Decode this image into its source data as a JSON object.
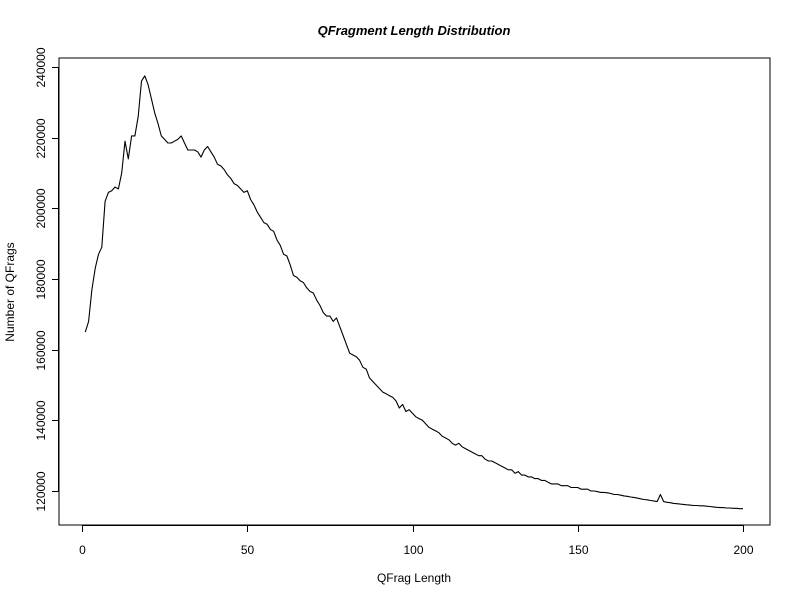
{
  "chart_data": {
    "type": "line",
    "title": "QFragment Length Distribution",
    "xlabel": "QFrag Length",
    "ylabel": "Number of QFrags",
    "xlim": [
      0,
      200
    ],
    "ylim": [
      110000,
      242000
    ],
    "x_ticks": [
      0,
      50,
      100,
      150,
      200
    ],
    "y_ticks": [
      120000,
      140000,
      160000,
      180000,
      200000,
      220000,
      240000
    ],
    "x_tick_labels": [
      "0",
      "50",
      "100",
      "150",
      "200"
    ],
    "y_tick_labels": [
      "120000",
      "140000",
      "160000",
      "180000",
      "200000",
      "220000",
      "240000"
    ],
    "grid": false,
    "legend": "none",
    "line_color": "#000000",
    "series": [
      {
        "x": [
          1,
          2,
          3,
          4,
          5,
          6,
          7,
          8,
          9,
          10,
          11,
          12,
          13,
          14,
          15,
          16,
          17,
          18,
          19,
          20,
          21,
          22,
          23,
          24,
          25,
          26,
          27,
          28,
          29,
          30,
          31,
          32,
          33,
          34,
          35,
          36,
          37,
          38,
          39,
          40,
          41,
          42,
          43,
          44,
          45,
          46,
          47,
          48,
          49,
          50,
          51,
          52,
          53,
          54,
          55,
          56,
          57,
          58,
          59,
          60,
          61,
          62,
          63,
          64,
          65,
          66,
          67,
          68,
          69,
          70,
          71,
          72,
          73,
          74,
          75,
          76,
          77,
          78,
          79,
          80,
          81,
          82,
          83,
          84,
          85,
          86,
          87,
          88,
          89,
          90,
          91,
          92,
          93,
          94,
          95,
          96,
          97,
          98,
          99,
          100,
          101,
          102,
          103,
          104,
          105,
          106,
          107,
          108,
          109,
          110,
          111,
          112,
          113,
          114,
          115,
          116,
          117,
          118,
          119,
          120,
          121,
          122,
          123,
          124,
          125,
          126,
          127,
          128,
          129,
          130,
          131,
          132,
          133,
          134,
          135,
          136,
          137,
          138,
          139,
          140,
          141,
          142,
          143,
          144,
          145,
          146,
          147,
          148,
          149,
          150,
          151,
          152,
          153,
          154,
          155,
          156,
          157,
          158,
          159,
          160,
          161,
          162,
          163,
          164,
          165,
          166,
          167,
          168,
          169,
          170,
          171,
          172,
          173,
          174,
          175,
          176,
          177,
          178,
          179,
          180,
          181,
          182,
          183,
          184,
          185,
          186,
          187,
          188,
          189,
          190,
          191,
          192,
          193,
          194,
          195,
          196,
          197,
          198,
          199,
          200
        ],
        "y": [
          165000,
          168000,
          177000,
          183000,
          187000,
          189000,
          202000,
          204500,
          205000,
          206000,
          205500,
          210000,
          219000,
          214000,
          220500,
          220500,
          226000,
          236000,
          237500,
          235000,
          231000,
          227000,
          224000,
          220500,
          219500,
          218500,
          218500,
          219000,
          219500,
          220500,
          218500,
          216500,
          216500,
          216500,
          216000,
          214500,
          216500,
          217500,
          216000,
          214500,
          212500,
          212000,
          211000,
          209500,
          208500,
          207000,
          206500,
          205500,
          204500,
          205000,
          202500,
          201000,
          199000,
          197500,
          196000,
          195500,
          194000,
          193500,
          191000,
          189500,
          187000,
          186500,
          184000,
          181000,
          180500,
          179500,
          179000,
          177500,
          176500,
          176000,
          174000,
          172500,
          170500,
          169500,
          169500,
          168000,
          169000,
          166500,
          164000,
          161500,
          159000,
          158500,
          158000,
          157000,
          155000,
          154500,
          152000,
          151000,
          150000,
          149000,
          148000,
          147500,
          147000,
          146500,
          145500,
          143500,
          144500,
          142500,
          143000,
          142000,
          141000,
          140500,
          140000,
          139000,
          138000,
          137500,
          137000,
          136500,
          135500,
          135000,
          134500,
          133500,
          133000,
          133500,
          132500,
          132000,
          131500,
          131000,
          130500,
          130000,
          130000,
          129000,
          128500,
          128500,
          128000,
          127500,
          127000,
          126500,
          126000,
          126000,
          125000,
          125500,
          124500,
          124500,
          124000,
          124000,
          123500,
          123500,
          123000,
          123000,
          122500,
          122000,
          122000,
          122000,
          121500,
          121500,
          121500,
          121000,
          121000,
          121000,
          120500,
          120500,
          120500,
          120000,
          120000,
          119800,
          119600,
          119600,
          119500,
          119300,
          119000,
          119000,
          118800,
          118600,
          118500,
          118300,
          118200,
          118000,
          117800,
          117600,
          117500,
          117300,
          117200,
          117000,
          119000,
          117000,
          116800,
          116700,
          116500,
          116400,
          116300,
          116200,
          116100,
          116000,
          115900,
          115900,
          115800,
          115800,
          115700,
          115600,
          115500,
          115400,
          115300,
          115300,
          115200,
          115200,
          115100,
          115100,
          115000,
          115000
        ]
      }
    ]
  }
}
